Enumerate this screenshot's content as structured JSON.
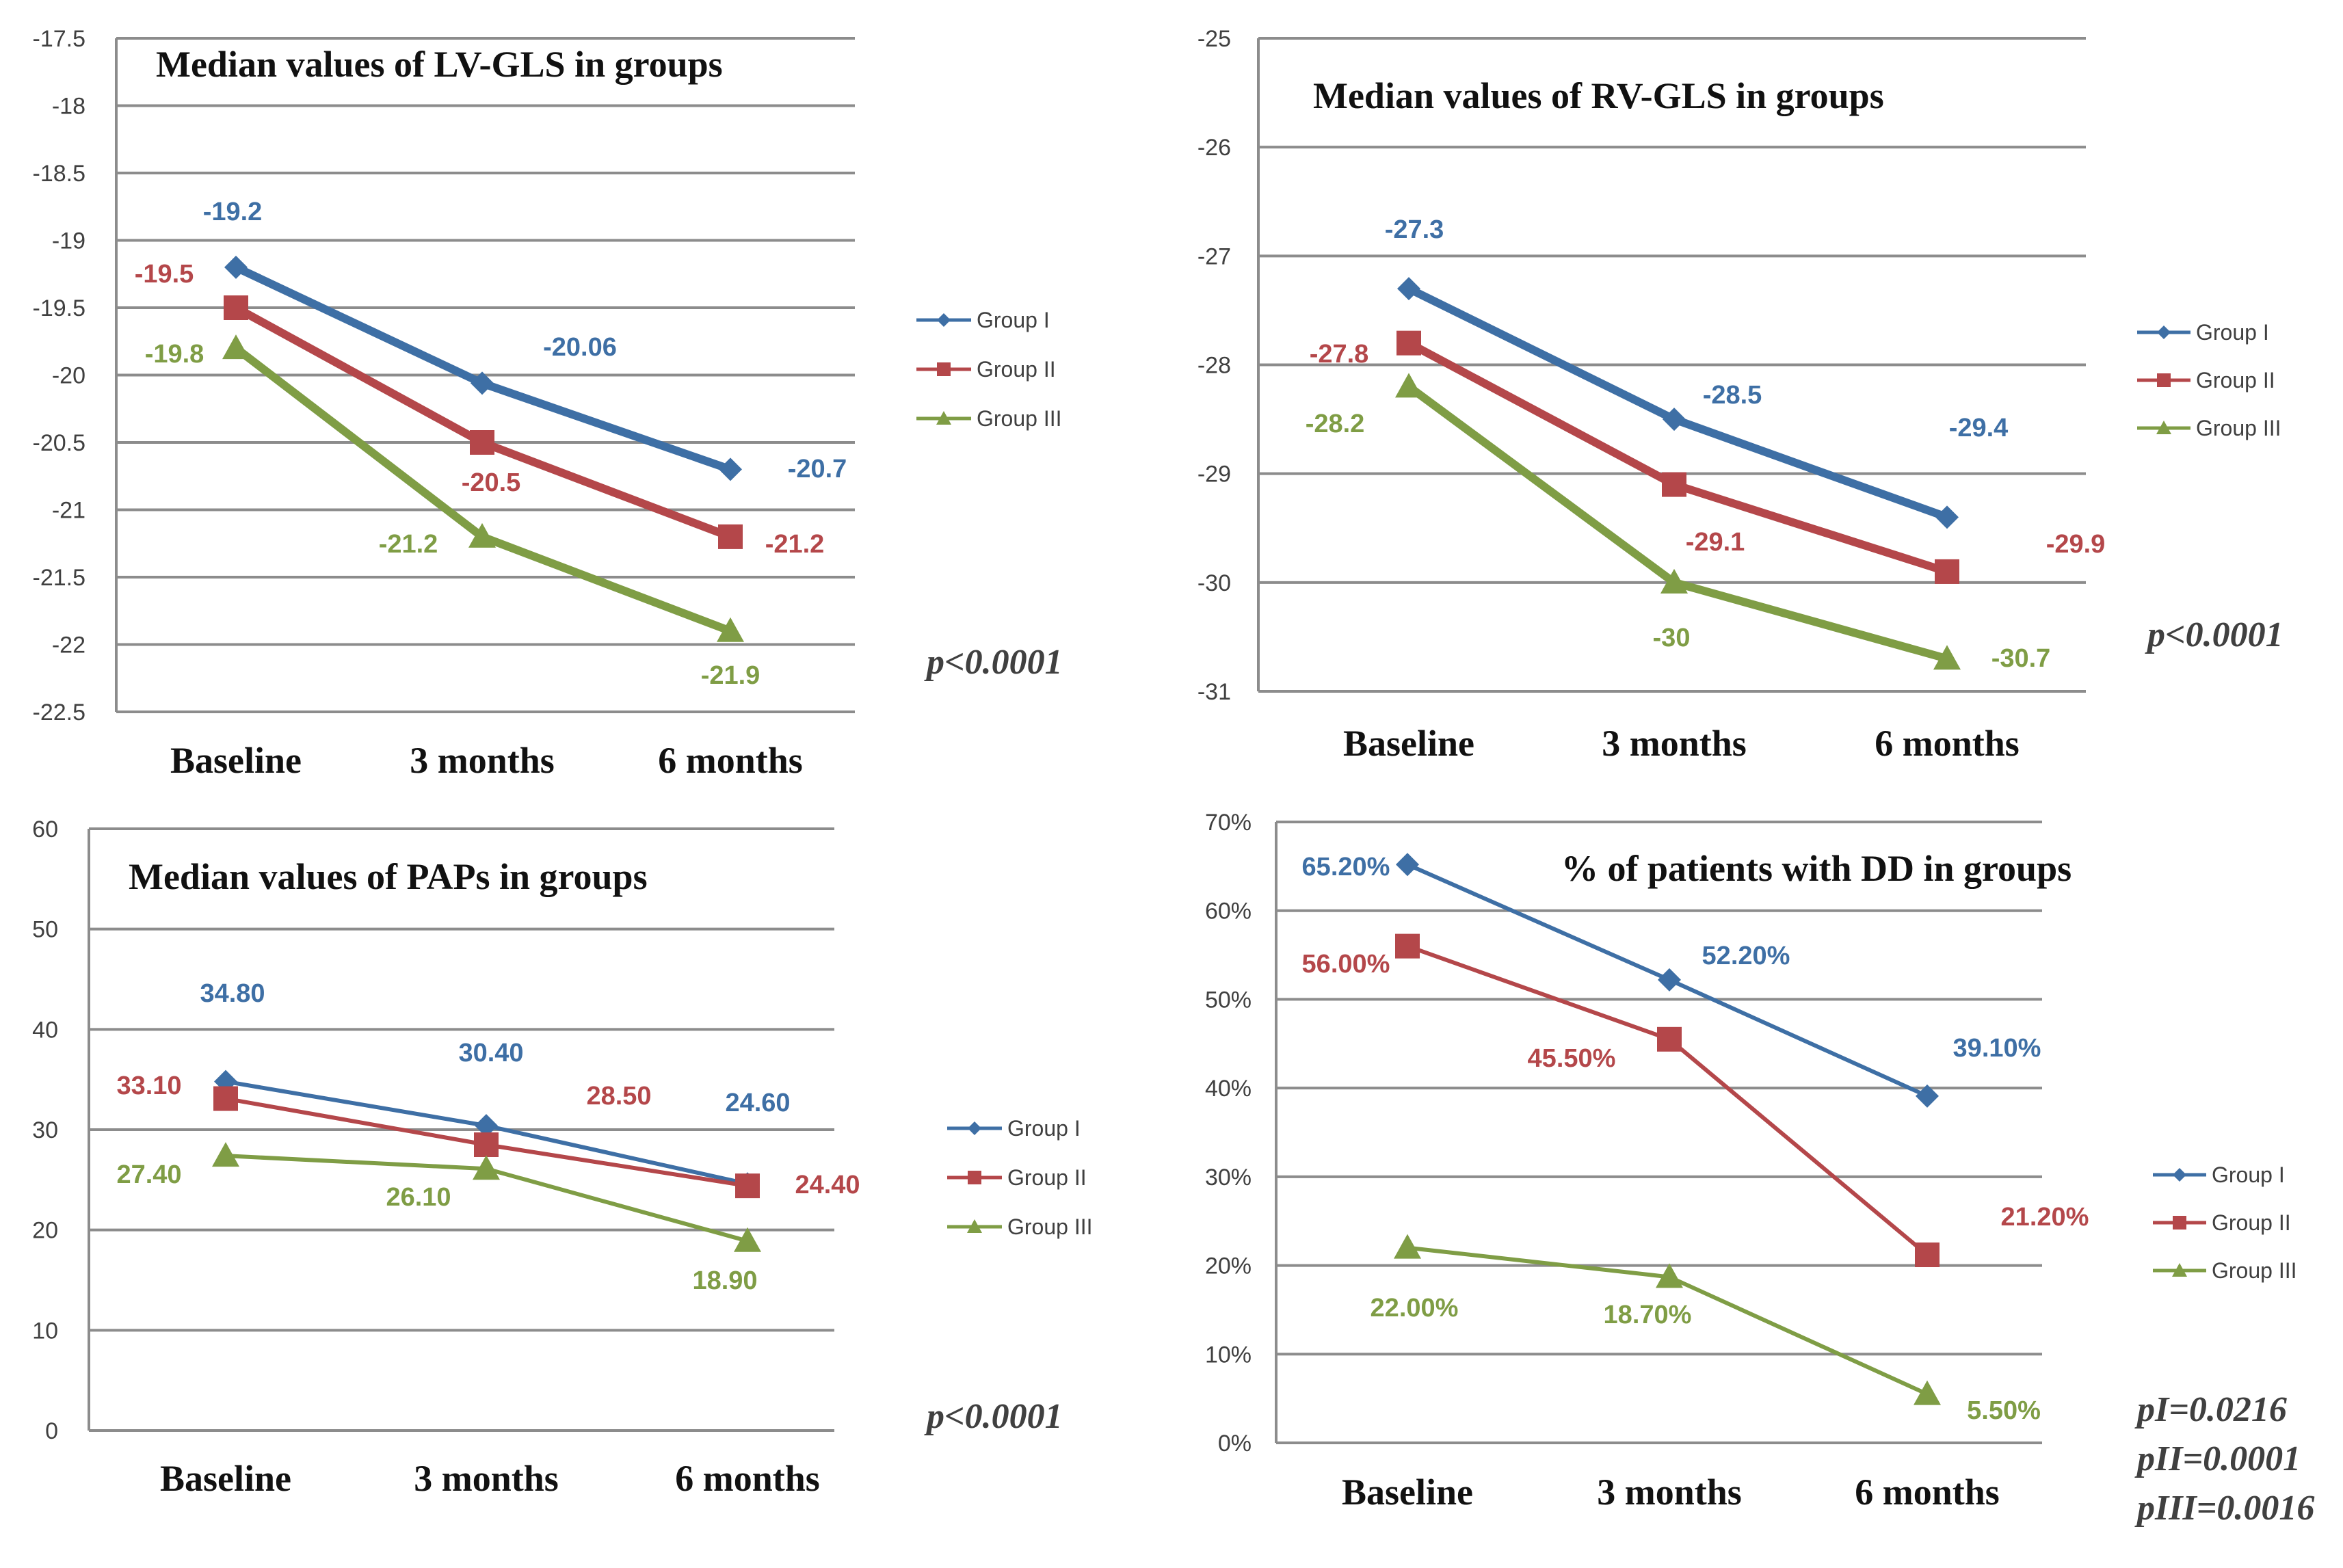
{
  "colors": {
    "group_i": "#3e6fa5",
    "group_ii": "#b4474a",
    "group_iii": "#7f9d45"
  },
  "chart_data": [
    {
      "type": "line",
      "title": "Median values of LV-GLS in groups",
      "categories": [
        "Baseline",
        "3 months",
        "6 months"
      ],
      "y_ticks": [
        "-17.5",
        "-18",
        "-18.5",
        "-19",
        "-19.5",
        "-20",
        "-20.5",
        "-21",
        "-21.5",
        "-22",
        "-22.5"
      ],
      "ylim": [
        -22.5,
        -17.5
      ],
      "series": [
        {
          "name": "Group I",
          "values": [
            -19.2,
            -20.06,
            -20.7
          ],
          "labels": [
            "-19.2",
            "-20.06",
            "-20.7"
          ]
        },
        {
          "name": "Group II",
          "values": [
            -19.5,
            -20.5,
            -21.2
          ],
          "labels": [
            "-19.5",
            "-20.5",
            "-21.2"
          ]
        },
        {
          "name": "Group III",
          "values": [
            -19.8,
            -21.2,
            -21.9
          ],
          "labels": [
            "-19.8",
            "-21.2",
            "-21.9"
          ]
        }
      ],
      "pvalues": [
        "p<0.0001"
      ]
    },
    {
      "type": "line",
      "title": "Median values of RV-GLS in groups",
      "categories": [
        "Baseline",
        "3 months",
        "6 months"
      ],
      "y_ticks": [
        "-25",
        "-26",
        "-27",
        "-28",
        "-29",
        "-30",
        "-31"
      ],
      "ylim": [
        -31,
        -25
      ],
      "series": [
        {
          "name": "Group I",
          "values": [
            -27.3,
            -28.5,
            -29.4
          ],
          "labels": [
            "-27.3",
            "-28.5",
            "-29.4"
          ]
        },
        {
          "name": "Group II",
          "values": [
            -27.8,
            -29.1,
            -29.9
          ],
          "labels": [
            "-27.8",
            "-29.1",
            "-29.9"
          ]
        },
        {
          "name": "Group III",
          "values": [
            -28.2,
            -30,
            -30.7
          ],
          "labels": [
            "-28.2",
            "-30",
            "-30.7"
          ]
        }
      ],
      "pvalues": [
        "p<0.0001"
      ]
    },
    {
      "type": "line",
      "title": "Median values of PAPs in groups",
      "categories": [
        "Baseline",
        "3 months",
        "6 months"
      ],
      "y_ticks": [
        "60",
        "50",
        "40",
        "30",
        "20",
        "10",
        "0"
      ],
      "ylim": [
        0,
        60
      ],
      "series": [
        {
          "name": "Group I",
          "values": [
            34.8,
            30.4,
            24.6
          ],
          "labels": [
            "34.80",
            "30.40",
            "24.60"
          ]
        },
        {
          "name": "Group II",
          "values": [
            33.1,
            28.5,
            24.4
          ],
          "labels": [
            "33.10",
            "28.50",
            "24.40"
          ]
        },
        {
          "name": "Group III",
          "values": [
            27.4,
            26.1,
            18.9
          ],
          "labels": [
            "27.40",
            "26.10",
            "18.90"
          ]
        }
      ],
      "pvalues": [
        "p<0.0001"
      ]
    },
    {
      "type": "line",
      "title": "% of patients with DD in groups",
      "categories": [
        "Baseline",
        "3 months",
        "6 months"
      ],
      "y_ticks": [
        "70%",
        "60%",
        "50%",
        "40%",
        "30%",
        "20%",
        "10%",
        "0%"
      ],
      "ylim": [
        0,
        70
      ],
      "series": [
        {
          "name": "Group I",
          "values": [
            65.2,
            52.2,
            39.1
          ],
          "labels": [
            "65.20%",
            "52.20%",
            "39.10%"
          ]
        },
        {
          "name": "Group II",
          "values": [
            56.0,
            45.5,
            21.2
          ],
          "labels": [
            "56.00%",
            "45.50%",
            "21.20%"
          ]
        },
        {
          "name": "Group III",
          "values": [
            22.0,
            18.7,
            5.5
          ],
          "labels": [
            "22.00%",
            "18.70%",
            "5.50%"
          ]
        }
      ],
      "pvalues": [
        "pI=0.0216",
        "pII=0.0001",
        "pIII=0.0016"
      ]
    }
  ]
}
